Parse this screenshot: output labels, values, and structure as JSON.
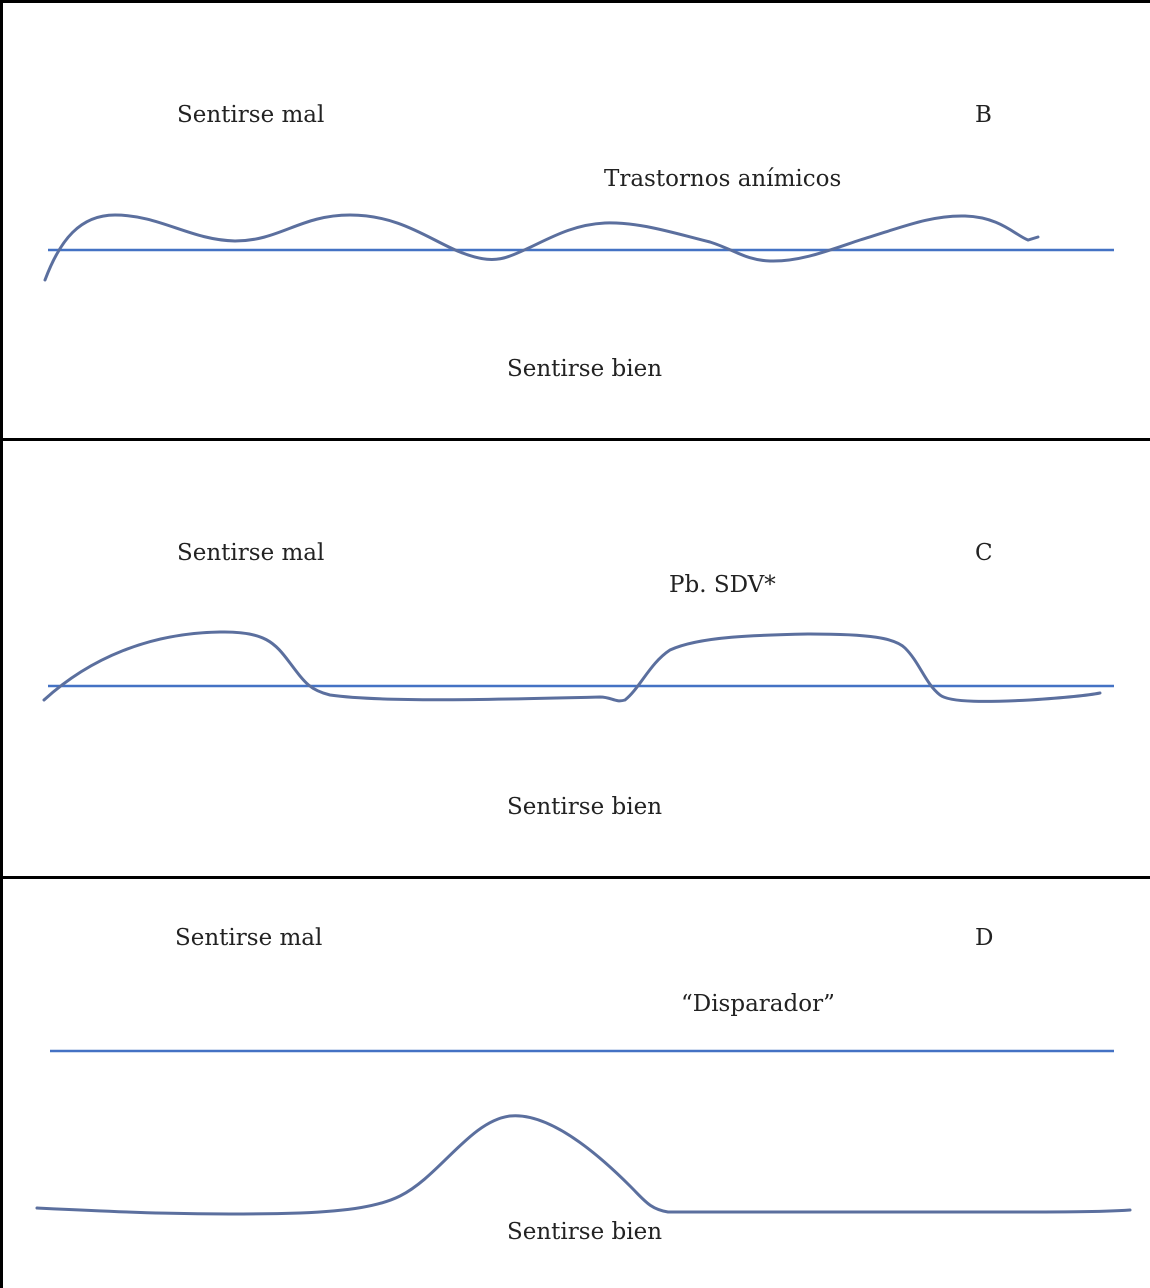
{
  "panels": [
    {
      "letter": "B",
      "top_label": "Sentirse mal",
      "bottom_label": "Sentirse bien",
      "annotation": "Trastornos anímicos"
    },
    {
      "letter": "C",
      "top_label": "Sentirse mal",
      "bottom_label": "Sentirse bien",
      "annotation": "Pb. SDV*"
    },
    {
      "letter": "D",
      "top_label": "Sentirse mal",
      "bottom_label": "Sentirse bien",
      "annotation": "“Disparador”"
    }
  ],
  "colors": {
    "baseline": "#4472c4",
    "curve": "#5b6f9e",
    "border": "#000000"
  }
}
